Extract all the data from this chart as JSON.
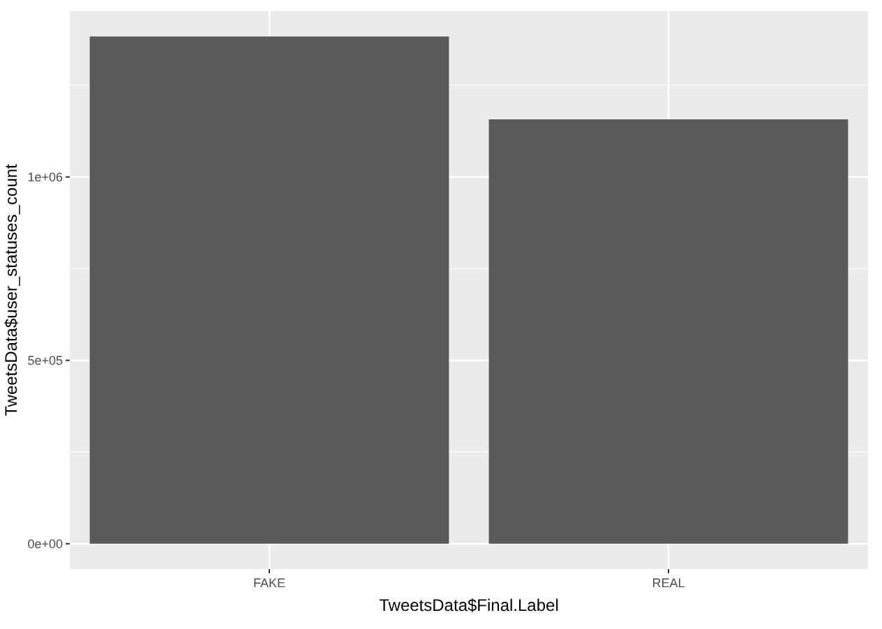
{
  "chart_data": {
    "type": "bar",
    "xlabel": "TweetsData$Final.Label",
    "ylabel": "TweetsData$user_statuses_count",
    "categories": [
      "FAKE",
      "REAL"
    ],
    "values": [
      1383000,
      1157000
    ],
    "color": "#595959",
    "ylim": [
      -69000,
      1452000
    ],
    "yticks": [
      {
        "value": 0,
        "label": "0e+00"
      },
      {
        "value": 500000,
        "label": "5e+05"
      },
      {
        "value": 1000000,
        "label": "1e+06"
      }
    ],
    "grid": true
  }
}
